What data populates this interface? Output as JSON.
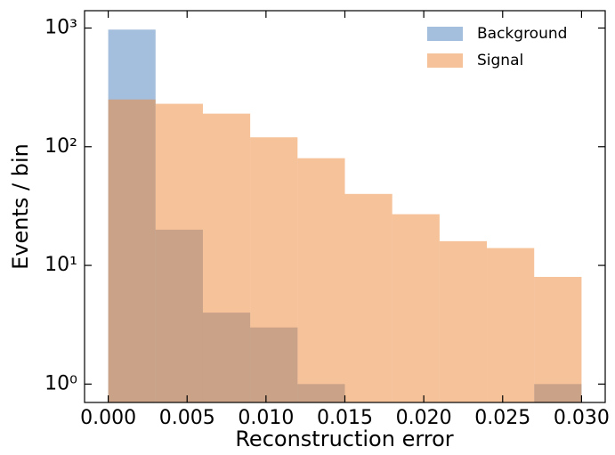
{
  "chart_data": {
    "type": "histogram",
    "x_label": "Reconstruction error",
    "y_label": "Events / bin",
    "bins": [
      0,
      0.003,
      0.006,
      0.009,
      0.012,
      0.015,
      0.018,
      0.021,
      0.024,
      0.027,
      0.03
    ],
    "series": [
      {
        "name": "Background",
        "color": "#4a7ebb",
        "values": [
          970,
          20,
          4,
          3,
          1,
          0,
          0,
          0,
          0,
          1
        ]
      },
      {
        "name": "Signal",
        "color": "#ee8633",
        "values": [
          250,
          230,
          190,
          120,
          80,
          40,
          27,
          16,
          14,
          8
        ]
      }
    ],
    "xlim": [
      -0.0015,
      0.0315
    ],
    "xticks": [
      {
        "value": 0,
        "label": "0.000"
      },
      {
        "value": 0.005,
        "label": "0.005"
      },
      {
        "value": 0.01,
        "label": "0.010"
      },
      {
        "value": 0.015,
        "label": "0.015"
      },
      {
        "value": 0.02,
        "label": "0.020"
      },
      {
        "value": 0.025,
        "label": "0.025"
      },
      {
        "value": 0.03,
        "label": "0.030"
      }
    ],
    "ylim": [
      0.7,
      1400
    ],
    "log_y": true,
    "yticks": [
      {
        "value": 1,
        "label": "10⁰"
      },
      {
        "value": 10,
        "label": "10¹"
      },
      {
        "value": 100,
        "label": "10²"
      },
      {
        "value": 1000,
        "label": "10³"
      }
    ],
    "legend": "upper right",
    "opacity": 0.5
  }
}
